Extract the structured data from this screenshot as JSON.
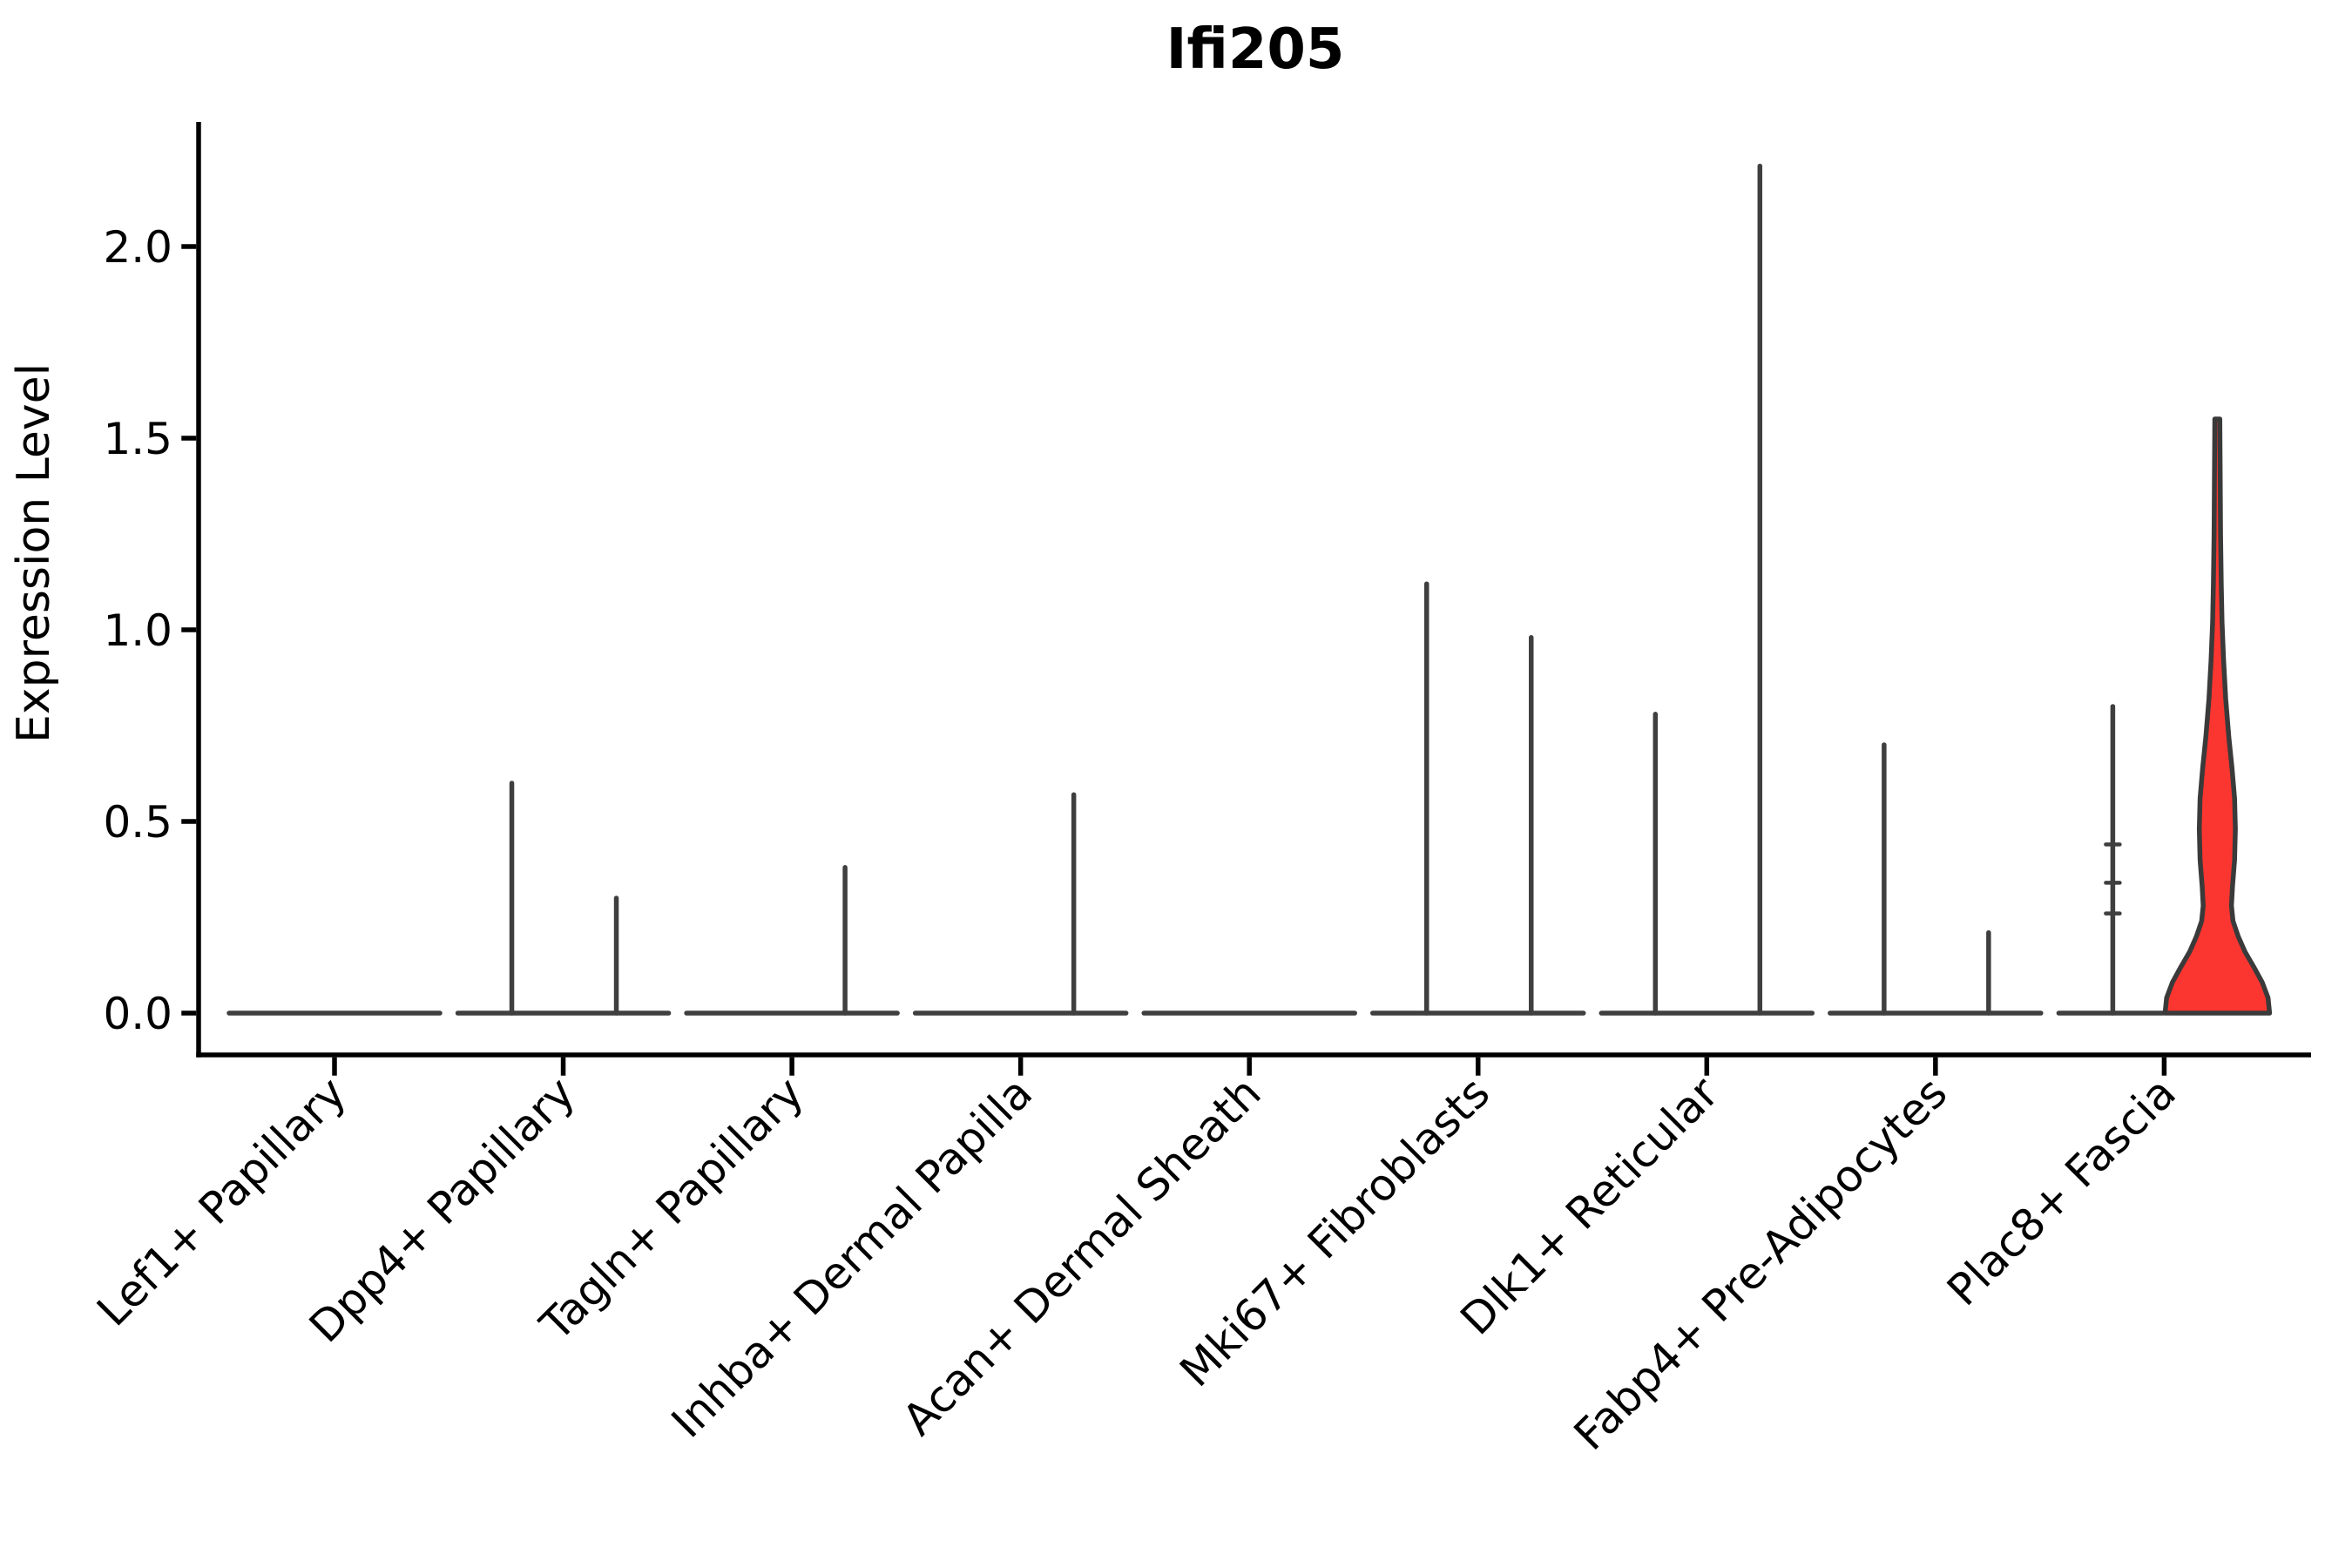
{
  "chart_data": {
    "type": "violin",
    "title": "Ifi205",
    "xlabel": "",
    "ylabel": "Expression Level",
    "background": "#ffffff",
    "axis_color": "#000000",
    "violin_line_color": "#3f3f3f",
    "highlight_fill": "#fb3630",
    "highlight_stroke": "#3a3a3a",
    "ylim": [
      -0.11,
      2.33
    ],
    "grid": false,
    "legend": "none",
    "yticks": [
      {
        "value": 0.0,
        "label": "0.0"
      },
      {
        "value": 0.5,
        "label": "0.5"
      },
      {
        "value": 1.0,
        "label": "1.0"
      },
      {
        "value": 1.5,
        "label": "1.5"
      },
      {
        "value": 2.0,
        "label": "2.0"
      }
    ],
    "categories": [
      {
        "label": "Lef1+ Papillary",
        "spikes": []
      },
      {
        "label": "Dpp4+ Papillary",
        "spikes": [
          {
            "side": "left",
            "value": 0.6
          },
          {
            "side": "right",
            "value": 0.3
          }
        ]
      },
      {
        "label": "Tagln+ Papillary",
        "spikes": [
          {
            "side": "right",
            "value": 0.38
          }
        ]
      },
      {
        "label": "Inhba+ Dermal Papilla",
        "spikes": [
          {
            "side": "right",
            "value": 0.57
          }
        ]
      },
      {
        "label": "Acan+ Dermal Sheath",
        "spikes": []
      },
      {
        "label": "Mki67+ Fibroblasts",
        "spikes": [
          {
            "side": "left",
            "value": 1.12
          },
          {
            "side": "right",
            "value": 0.98
          }
        ]
      },
      {
        "label": "Dlk1+ Reticular",
        "spikes": [
          {
            "side": "left",
            "value": 0.78
          },
          {
            "side": "right",
            "value": 2.21
          }
        ]
      },
      {
        "label": "Fabp4+ Pre-Adipocytes",
        "spikes": [
          {
            "side": "left",
            "value": 0.7
          },
          {
            "side": "right",
            "value": 0.21
          }
        ]
      },
      {
        "label": "Plac8+ Fascia",
        "spikes": [
          {
            "side": "left",
            "value": 0.8,
            "marks": [
              0.26,
              0.34,
              0.44
            ]
          }
        ],
        "highlight": {
          "side": "right",
          "max": 1.55,
          "profile": [
            [
              0.0,
              1.0
            ],
            [
              0.04,
              0.97
            ],
            [
              0.08,
              0.86
            ],
            [
              0.12,
              0.7
            ],
            [
              0.16,
              0.53
            ],
            [
              0.2,
              0.4
            ],
            [
              0.24,
              0.3
            ],
            [
              0.28,
              0.27
            ],
            [
              0.33,
              0.29
            ],
            [
              0.4,
              0.33
            ],
            [
              0.48,
              0.345
            ],
            [
              0.56,
              0.33
            ],
            [
              0.64,
              0.28
            ],
            [
              0.72,
              0.22
            ],
            [
              0.82,
              0.16
            ],
            [
              0.92,
              0.12
            ],
            [
              1.02,
              0.09
            ],
            [
              1.12,
              0.075
            ],
            [
              1.25,
              0.062
            ],
            [
              1.4,
              0.055
            ],
            [
              1.5,
              0.05
            ],
            [
              1.55,
              0.048
            ]
          ]
        }
      }
    ]
  }
}
